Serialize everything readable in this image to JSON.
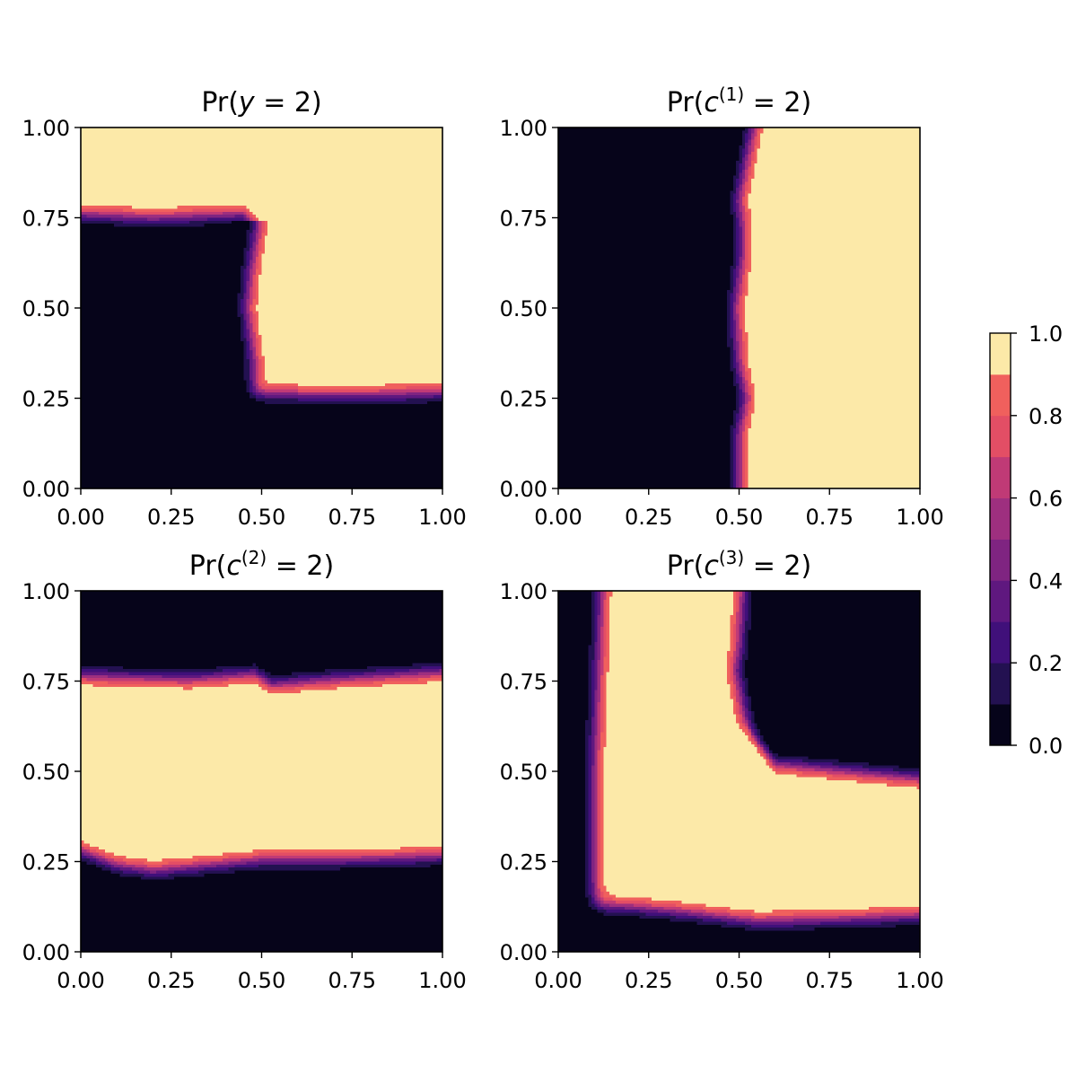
{
  "chart_data": {
    "type": "contourf",
    "colormap": "magma",
    "levels": [
      0.0,
      0.1,
      0.2,
      0.3,
      0.4,
      0.5,
      0.6,
      0.7,
      0.8,
      0.9,
      1.0
    ],
    "level_colors": [
      "#06041a",
      "#231151",
      "#40107a",
      "#5f187f",
      "#7f2481",
      "#9e2f7f",
      "#c03a76",
      "#e34e65",
      "#f0605d",
      "#fe9f6d",
      "#fce9a8"
    ],
    "panels": [
      {
        "title_parts": {
          "pre": "Pr(",
          "var": "y",
          "sup": "",
          "post": " = 2)"
        },
        "xlim": [
          0,
          1
        ],
        "ylim": [
          0,
          1
        ],
        "xticks": [
          "0.00",
          "0.25",
          "0.50",
          "0.75",
          "1.00"
        ],
        "yticks": [
          "0.00",
          "0.25",
          "0.50",
          "0.75",
          "1.00"
        ],
        "region": "y=2 where y > 0.76 for x < 0.5, and y > 0.26 for x > 0.5",
        "boundary": [
          [
            0.0,
            0.76
          ],
          [
            0.2,
            0.75
          ],
          [
            0.45,
            0.76
          ],
          [
            0.49,
            0.72
          ],
          [
            0.47,
            0.6
          ],
          [
            0.46,
            0.5
          ],
          [
            0.48,
            0.35
          ],
          [
            0.54,
            0.26
          ],
          [
            0.8,
            0.26
          ],
          [
            1.0,
            0.265
          ]
        ]
      },
      {
        "title_parts": {
          "pre": "Pr(",
          "var": "c",
          "sup": "(1)",
          "post": " = 2)"
        },
        "xlim": [
          0,
          1
        ],
        "ylim": [
          0,
          1
        ],
        "xticks": [
          "0.00",
          "0.25",
          "0.50",
          "0.75",
          "1.00"
        ],
        "yticks": [
          "0.00",
          "0.25",
          "0.50",
          "0.75",
          "1.00"
        ],
        "region": "c1=2 where x > ~0.5 (near-vertical boundary)",
        "boundary": [
          [
            0.5,
            0.0
          ],
          [
            0.5,
            0.15
          ],
          [
            0.52,
            0.25
          ],
          [
            0.5,
            0.35
          ],
          [
            0.49,
            0.5
          ],
          [
            0.51,
            0.65
          ],
          [
            0.51,
            0.72
          ],
          [
            0.5,
            0.8
          ],
          [
            0.52,
            0.9
          ],
          [
            0.54,
            1.0
          ]
        ]
      },
      {
        "title_parts": {
          "pre": "Pr(",
          "var": "c",
          "sup": "(2)",
          "post": " = 2)"
        },
        "xlim": [
          0,
          1
        ],
        "ylim": [
          0,
          1
        ],
        "xticks": [
          "0.00",
          "0.25",
          "0.50",
          "0.75",
          "1.00"
        ],
        "yticks": [
          "0.00",
          "0.25",
          "0.50",
          "0.75",
          "1.00"
        ],
        "region": "c2=2 in horizontal band between y ~0.26 and y ~0.76",
        "boundary_upper": [
          [
            0.0,
            0.765
          ],
          [
            0.3,
            0.755
          ],
          [
            0.48,
            0.77
          ],
          [
            0.53,
            0.74
          ],
          [
            0.7,
            0.755
          ],
          [
            1.0,
            0.775
          ]
        ],
        "boundary_lower": [
          [
            0.0,
            0.28
          ],
          [
            0.1,
            0.24
          ],
          [
            0.2,
            0.225
          ],
          [
            0.35,
            0.24
          ],
          [
            0.5,
            0.255
          ],
          [
            0.7,
            0.255
          ],
          [
            1.0,
            0.265
          ]
        ]
      },
      {
        "title_parts": {
          "pre": "Pr(",
          "var": "c",
          "sup": "(3)",
          "post": " = 2)"
        },
        "xlim": [
          0,
          1
        ],
        "ylim": [
          0,
          1
        ],
        "xticks": [
          "0.00",
          "0.25",
          "0.50",
          "0.75",
          "1.00"
        ],
        "yticks": [
          "0.00",
          "0.25",
          "0.50",
          "0.75",
          "1.00"
        ],
        "region": "c3=2 in an L-shaped band: x > ~0.11 and (x < ~0.51 or y < ~0.5), excluding y < ~0.1",
        "boundary_left": [
          [
            0.11,
            0.0
          ],
          [
            0.1,
            0.2
          ],
          [
            0.1,
            0.5
          ],
          [
            0.11,
            0.75
          ],
          [
            0.12,
            1.0
          ]
        ],
        "boundary_bottom": [
          [
            0.1,
            0.13
          ],
          [
            0.2,
            0.125
          ],
          [
            0.35,
            0.11
          ],
          [
            0.55,
            0.085
          ],
          [
            0.75,
            0.09
          ],
          [
            1.0,
            0.1
          ]
        ],
        "boundary_inner": [
          [
            0.51,
            1.0
          ],
          [
            0.5,
            0.85
          ],
          [
            0.49,
            0.78
          ],
          [
            0.52,
            0.62
          ],
          [
            0.6,
            0.52
          ],
          [
            0.8,
            0.5
          ],
          [
            1.0,
            0.48
          ]
        ]
      }
    ],
    "colorbar": {
      "ticks": [
        "0.0",
        "0.2",
        "0.4",
        "0.6",
        "0.8",
        "1.0"
      ]
    }
  }
}
